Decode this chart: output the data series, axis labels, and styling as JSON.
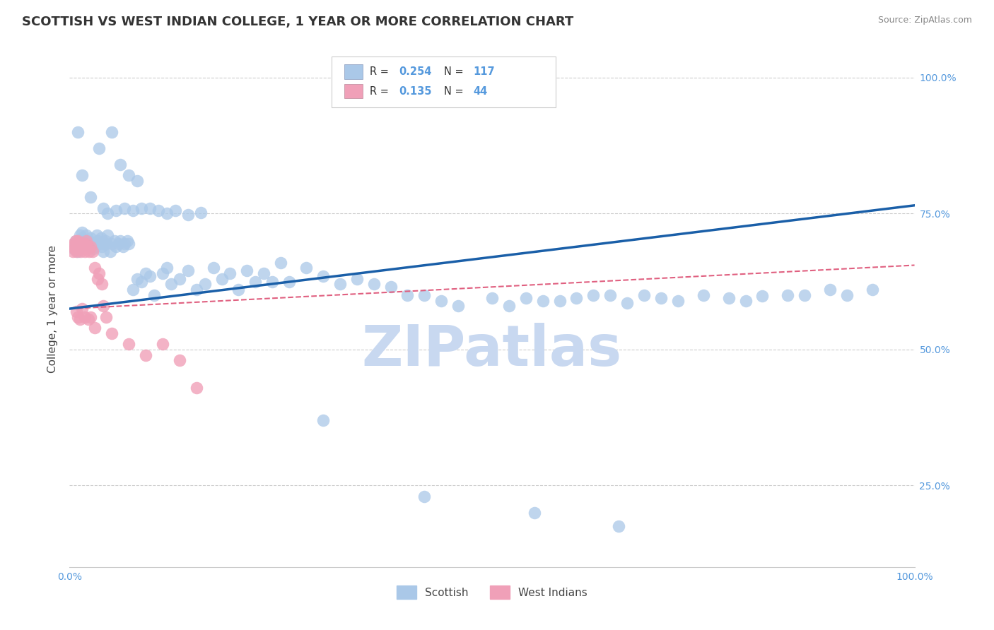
{
  "title": "SCOTTISH VS WEST INDIAN COLLEGE, 1 YEAR OR MORE CORRELATION CHART",
  "source": "Source: ZipAtlas.com",
  "ylabel": "College, 1 year or more",
  "xlim": [
    0,
    1.0
  ],
  "ylim": [
    0.1,
    1.05
  ],
  "ytick_positions": [
    0.25,
    0.5,
    0.75,
    1.0
  ],
  "ytick_labels": [
    "25.0%",
    "50.0%",
    "75.0%",
    "100.0%"
  ],
  "xtick_positions": [
    0.0,
    1.0
  ],
  "xtick_labels": [
    "0.0%",
    "100.0%"
  ],
  "legend_label1": "Scottish",
  "legend_label2": "West Indians",
  "scatter_color_blue": "#aac8e8",
  "scatter_color_pink": "#f0a0b8",
  "line_color_blue": "#1a5fa8",
  "line_color_pink": "#e06080",
  "watermark": "ZIPatlas",
  "watermark_color": "#c8d8f0",
  "title_fontsize": 13,
  "blue_intercept": 0.575,
  "blue_slope": 0.19,
  "pink_intercept": 0.575,
  "pink_slope": 0.08,
  "blue_x": [
    0.005,
    0.007,
    0.008,
    0.01,
    0.01,
    0.012,
    0.013,
    0.014,
    0.015,
    0.015,
    0.018,
    0.02,
    0.02,
    0.022,
    0.023,
    0.025,
    0.025,
    0.028,
    0.03,
    0.03,
    0.032,
    0.033,
    0.035,
    0.037,
    0.038,
    0.04,
    0.04,
    0.042,
    0.043,
    0.045,
    0.048,
    0.05,
    0.053,
    0.055,
    0.058,
    0.06,
    0.063,
    0.065,
    0.068,
    0.07,
    0.075,
    0.08,
    0.085,
    0.09,
    0.095,
    0.1,
    0.11,
    0.115,
    0.12,
    0.13,
    0.14,
    0.15,
    0.16,
    0.17,
    0.18,
    0.19,
    0.2,
    0.21,
    0.22,
    0.23,
    0.24,
    0.25,
    0.26,
    0.28,
    0.3,
    0.32,
    0.34,
    0.36,
    0.38,
    0.4,
    0.42,
    0.44,
    0.46,
    0.5,
    0.52,
    0.54,
    0.56,
    0.58,
    0.6,
    0.62,
    0.64,
    0.66,
    0.68,
    0.7,
    0.72,
    0.75,
    0.78,
    0.8,
    0.82,
    0.85,
    0.87,
    0.9,
    0.92,
    0.95,
    0.04,
    0.045,
    0.055,
    0.065,
    0.075,
    0.085,
    0.095,
    0.105,
    0.115,
    0.125,
    0.14,
    0.155,
    0.06,
    0.07,
    0.08,
    0.05,
    0.035,
    0.025,
    0.015,
    0.01,
    0.3,
    0.42,
    0.55,
    0.65
  ],
  "blue_y": [
    0.685,
    0.7,
    0.69,
    0.695,
    0.68,
    0.71,
    0.7,
    0.695,
    0.705,
    0.715,
    0.7,
    0.695,
    0.71,
    0.7,
    0.69,
    0.695,
    0.705,
    0.685,
    0.69,
    0.695,
    0.71,
    0.7,
    0.695,
    0.705,
    0.69,
    0.695,
    0.68,
    0.7,
    0.695,
    0.71,
    0.68,
    0.695,
    0.7,
    0.69,
    0.695,
    0.7,
    0.69,
    0.695,
    0.7,
    0.695,
    0.61,
    0.63,
    0.625,
    0.64,
    0.635,
    0.6,
    0.64,
    0.65,
    0.62,
    0.63,
    0.645,
    0.61,
    0.62,
    0.65,
    0.63,
    0.64,
    0.61,
    0.645,
    0.625,
    0.64,
    0.625,
    0.66,
    0.625,
    0.65,
    0.635,
    0.62,
    0.63,
    0.62,
    0.615,
    0.6,
    0.6,
    0.59,
    0.58,
    0.595,
    0.58,
    0.595,
    0.59,
    0.59,
    0.595,
    0.6,
    0.6,
    0.585,
    0.6,
    0.595,
    0.59,
    0.6,
    0.595,
    0.59,
    0.598,
    0.6,
    0.6,
    0.61,
    0.6,
    0.61,
    0.76,
    0.75,
    0.755,
    0.76,
    0.755,
    0.76,
    0.76,
    0.755,
    0.75,
    0.755,
    0.748,
    0.752,
    0.84,
    0.82,
    0.81,
    0.9,
    0.87,
    0.78,
    0.82,
    0.9,
    0.37,
    0.23,
    0.2,
    0.175
  ],
  "pink_x": [
    0.003,
    0.004,
    0.005,
    0.006,
    0.007,
    0.008,
    0.008,
    0.009,
    0.01,
    0.01,
    0.012,
    0.013,
    0.014,
    0.015,
    0.016,
    0.017,
    0.018,
    0.019,
    0.02,
    0.02,
    0.022,
    0.023,
    0.025,
    0.027,
    0.03,
    0.033,
    0.035,
    0.038,
    0.04,
    0.043,
    0.008,
    0.01,
    0.012,
    0.015,
    0.018,
    0.022,
    0.025,
    0.03,
    0.05,
    0.07,
    0.09,
    0.11,
    0.13,
    0.15
  ],
  "pink_y": [
    0.69,
    0.68,
    0.695,
    0.685,
    0.7,
    0.69,
    0.68,
    0.695,
    0.685,
    0.7,
    0.69,
    0.68,
    0.695,
    0.685,
    0.695,
    0.69,
    0.68,
    0.695,
    0.685,
    0.7,
    0.69,
    0.68,
    0.69,
    0.68,
    0.65,
    0.63,
    0.64,
    0.62,
    0.58,
    0.56,
    0.57,
    0.56,
    0.555,
    0.575,
    0.56,
    0.555,
    0.56,
    0.54,
    0.53,
    0.51,
    0.49,
    0.51,
    0.48,
    0.43
  ]
}
